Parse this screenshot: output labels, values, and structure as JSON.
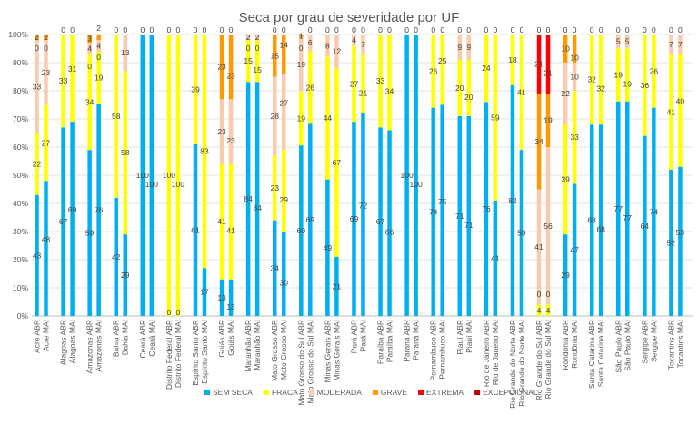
{
  "chart_data": {
    "type": "bar",
    "stacked": true,
    "normalized": true,
    "title": "Seca por grau de severidade por UF",
    "ylim": [
      0,
      100
    ],
    "y_ticks": [
      "0%",
      "10%",
      "20%",
      "30%",
      "40%",
      "50%",
      "60%",
      "70%",
      "80%",
      "90%",
      "100%"
    ],
    "grid": true,
    "legend_position": "bottom",
    "series_names": [
      "SEM SECA",
      "FRACA",
      "MODERADA",
      "GRAVE",
      "EXTREMA",
      "EXCEPCIONAL"
    ],
    "colors": [
      "#00b0f0",
      "#ffff00",
      "#f8cbad",
      "#ff9900",
      "#ff0000",
      "#c00000"
    ],
    "categories": [
      "Acre ABR",
      "Acre MAI",
      "Alagoas ABR",
      "Alagoas MAI",
      "Amazonas ABR",
      "Amazonas MAI",
      "Bahia ABR",
      "Bahia MAI",
      "Ceará ABR",
      "Ceará MAI",
      "Distrito Federal ABR",
      "Distrito Federal MAI",
      "Espírito Santo ABR",
      "Espírito Santo MAI",
      "Goiás ABR",
      "Goiás MAI",
      "Maranhão ABR",
      "Maranhão MAI",
      "Mato Grosso ABR",
      "Mato Grosso MAI",
      "Mato Grosso do Sul ABR",
      "Mato Grosso do Sul MAI",
      "Minas Gerais ABR",
      "Minas Gerais MAI",
      "Pará ABR",
      "Pará MAI",
      "Paraíba ABR",
      "Paraíba MAI",
      "Paraná ABR",
      "Paraná MAI",
      "Pernambuco ABR",
      "Pernambuco MAI",
      "Piauí ABR",
      "Piauí MAI",
      "Rio de Janeiro ABR",
      "Rio de Janeiro MAI",
      "Rio Grande do Norte ABR",
      "Rio Grande do Norte MAI",
      "Rio Grande do Sul ABR",
      "Rio Grande do Sul MAI",
      "Rondônia ABR",
      "Rondônia MAI",
      "Santa Catarina ABR",
      "Santa Catarina MAI",
      "São Paulo ABR",
      "São Paulo MAI",
      "Sergipe ABR",
      "Sergipe MAI",
      "Tocantins ABR",
      "Tocantins MAI"
    ],
    "values": [
      [
        43,
        22,
        33,
        2,
        0,
        0
      ],
      [
        48,
        27,
        23,
        2,
        0,
        0
      ],
      [
        67,
        33,
        0,
        0,
        0,
        0
      ],
      [
        69,
        31,
        0,
        0,
        0,
        0
      ],
      [
        59,
        34,
        4,
        3,
        0,
        0
      ],
      [
        76,
        19,
        4,
        2,
        0,
        0
      ],
      [
        42,
        58,
        0,
        0,
        0,
        0
      ],
      [
        29,
        58,
        13,
        0,
        0,
        0
      ],
      [
        100,
        0,
        0,
        0,
        0,
        0
      ],
      [
        100,
        0,
        0,
        0,
        0,
        0
      ],
      [
        0,
        100,
        0,
        0,
        0,
        0
      ],
      [
        0,
        100,
        0,
        0,
        0,
        0
      ],
      [
        61,
        39,
        0,
        0,
        0,
        0
      ],
      [
        17,
        83,
        0,
        0,
        0,
        0
      ],
      [
        13,
        41,
        23,
        23,
        0,
        0
      ],
      [
        13,
        41,
        23,
        23,
        0,
        0
      ],
      [
        84,
        15,
        2,
        0,
        0,
        0
      ],
      [
        84,
        15,
        2,
        0,
        0,
        0
      ],
      [
        34,
        23,
        28,
        15,
        0,
        0
      ],
      [
        30,
        29,
        27,
        14,
        0,
        0
      ],
      [
        60,
        19,
        19,
        1,
        0,
        0
      ],
      [
        69,
        26,
        6,
        0,
        0,
        0
      ],
      [
        49,
        44,
        8,
        0,
        0,
        0
      ],
      [
        21,
        67,
        12,
        0,
        0,
        0
      ],
      [
        69,
        27,
        4,
        0,
        0,
        0
      ],
      [
        72,
        21,
        7,
        0,
        0,
        0
      ],
      [
        67,
        33,
        0,
        0,
        0,
        0
      ],
      [
        66,
        34,
        0,
        0,
        0,
        0
      ],
      [
        100,
        0,
        0,
        0,
        0,
        0
      ],
      [
        100,
        0,
        0,
        0,
        0,
        0
      ],
      [
        74,
        26,
        0,
        0,
        0,
        0
      ],
      [
        75,
        25,
        0,
        0,
        0,
        0
      ],
      [
        71,
        20,
        9,
        0,
        0,
        0
      ],
      [
        71,
        20,
        9,
        0,
        0,
        0
      ],
      [
        76,
        24,
        0,
        0,
        0,
        0
      ],
      [
        41,
        59,
        0,
        0,
        0,
        0
      ],
      [
        82,
        18,
        0,
        0,
        0,
        0
      ],
      [
        59,
        41,
        0,
        0,
        0,
        0
      ],
      [
        0,
        4,
        41,
        34,
        21,
        0
      ],
      [
        0,
        4,
        56,
        19,
        21,
        0
      ],
      [
        29,
        39,
        22,
        10,
        0,
        0
      ],
      [
        47,
        33,
        10,
        10,
        0,
        0
      ],
      [
        68,
        32,
        0,
        0,
        0,
        0
      ],
      [
        68,
        32,
        0,
        0,
        0,
        0
      ],
      [
        77,
        19,
        5,
        0,
        0,
        0
      ],
      [
        77,
        19,
        5,
        0,
        0,
        0
      ],
      [
        64,
        36,
        0,
        0,
        0,
        0
      ],
      [
        74,
        26,
        0,
        0,
        0,
        0
      ],
      [
        52,
        41,
        7,
        0,
        0,
        0
      ],
      [
        53,
        40,
        7,
        0,
        0,
        0
      ]
    ]
  }
}
